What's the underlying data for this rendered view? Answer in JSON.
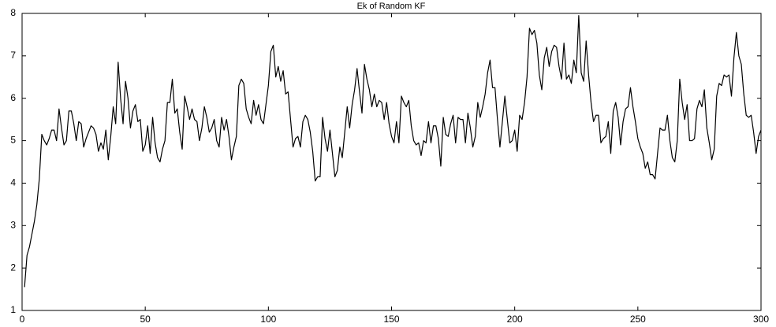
{
  "chart_data": {
    "type": "line",
    "title": "Ek of Random KF",
    "x": [
      1,
      2,
      3,
      4,
      5,
      6,
      7,
      8,
      9,
      10,
      11,
      12,
      13,
      14,
      15,
      16,
      17,
      18,
      19,
      20,
      21,
      22,
      23,
      24,
      25,
      26,
      27,
      28,
      29,
      30,
      31,
      32,
      33,
      34,
      35,
      36,
      37,
      38,
      39,
      40,
      41,
      42,
      43,
      44,
      45,
      46,
      47,
      48,
      49,
      50,
      51,
      52,
      53,
      54,
      55,
      56,
      57,
      58,
      59,
      60,
      61,
      62,
      63,
      64,
      65,
      66,
      67,
      68,
      69,
      70,
      71,
      72,
      73,
      74,
      75,
      76,
      77,
      78,
      79,
      80,
      81,
      82,
      83,
      84,
      85,
      86,
      87,
      88,
      89,
      90,
      91,
      92,
      93,
      94,
      95,
      96,
      97,
      98,
      99,
      100,
      101,
      102,
      103,
      104,
      105,
      106,
      107,
      108,
      109,
      110,
      111,
      112,
      113,
      114,
      115,
      116,
      117,
      118,
      119,
      120,
      121,
      122,
      123,
      124,
      125,
      126,
      127,
      128,
      129,
      130,
      131,
      132,
      133,
      134,
      135,
      136,
      137,
      138,
      139,
      140,
      141,
      142,
      143,
      144,
      145,
      146,
      147,
      148,
      149,
      150,
      151,
      152,
      153,
      154,
      155,
      156,
      157,
      158,
      159,
      160,
      161,
      162,
      163,
      164,
      165,
      166,
      167,
      168,
      169,
      170,
      171,
      172,
      173,
      174,
      175,
      176,
      177,
      178,
      179,
      180,
      181,
      182,
      183,
      184,
      185,
      186,
      187,
      188,
      189,
      190,
      191,
      192,
      193,
      194,
      195,
      196,
      197,
      198,
      199,
      200,
      201,
      202,
      203,
      204,
      205,
      206,
      207,
      208,
      209,
      210,
      211,
      212,
      213,
      214,
      215,
      216,
      217,
      218,
      219,
      220,
      221,
      222,
      223,
      224,
      225,
      226,
      227,
      228,
      229,
      230,
      231,
      232,
      233,
      234,
      235,
      236,
      237,
      238,
      239,
      240,
      241,
      242,
      243,
      244,
      245,
      246,
      247,
      248,
      249,
      250,
      251,
      252,
      253,
      254,
      255,
      256,
      257,
      258,
      259,
      260,
      261,
      262,
      263,
      264,
      265,
      266,
      267,
      268,
      269,
      270,
      271,
      272,
      273,
      274,
      275,
      276,
      277,
      278,
      279,
      280,
      281,
      282,
      283,
      284,
      285,
      286,
      287,
      288,
      289,
      290,
      291,
      292,
      293,
      294,
      295,
      296,
      297,
      298,
      299,
      300
    ],
    "series": [
      {
        "color": "#000000",
        "values": [
          1.55,
          2.3,
          2.5,
          2.8,
          3.1,
          3.5,
          4.1,
          5.15,
          5.0,
          4.9,
          5.05,
          5.25,
          5.25,
          5.0,
          5.75,
          5.3,
          4.9,
          5.0,
          5.7,
          5.7,
          5.4,
          5.0,
          5.45,
          5.4,
          4.85,
          5.05,
          5.2,
          5.35,
          5.3,
          5.15,
          4.75,
          4.95,
          4.8,
          5.25,
          4.55,
          5.1,
          5.8,
          5.4,
          6.85,
          6.0,
          5.4,
          6.4,
          6.0,
          5.3,
          5.7,
          5.85,
          5.45,
          5.5,
          4.75,
          4.9,
          5.35,
          4.7,
          5.55,
          4.95,
          4.6,
          4.5,
          4.8,
          5.0,
          5.9,
          5.9,
          6.45,
          5.65,
          5.75,
          5.2,
          4.8,
          6.05,
          5.8,
          5.5,
          5.75,
          5.5,
          5.45,
          5.0,
          5.3,
          5.8,
          5.55,
          5.2,
          5.3,
          5.5,
          5.0,
          4.85,
          5.55,
          5.25,
          5.5,
          5.1,
          4.55,
          4.85,
          5.1,
          6.3,
          6.45,
          6.35,
          5.75,
          5.55,
          5.4,
          5.95,
          5.6,
          5.85,
          5.5,
          5.4,
          5.85,
          6.3,
          7.1,
          7.25,
          6.5,
          6.75,
          6.4,
          6.65,
          6.1,
          6.15,
          5.5,
          4.85,
          5.05,
          5.1,
          4.85,
          5.45,
          5.6,
          5.5,
          5.2,
          4.75,
          4.05,
          4.15,
          4.15,
          5.55,
          5.05,
          4.75,
          5.25,
          4.7,
          4.15,
          4.3,
          4.85,
          4.6,
          5.2,
          5.8,
          5.3,
          5.85,
          6.2,
          6.7,
          6.15,
          5.65,
          6.8,
          6.45,
          6.2,
          5.8,
          6.1,
          5.8,
          5.95,
          5.9,
          5.5,
          5.9,
          5.4,
          5.1,
          4.95,
          5.45,
          4.95,
          6.05,
          5.9,
          5.8,
          5.95,
          5.35,
          5.0,
          4.9,
          4.95,
          4.65,
          5.0,
          4.95,
          5.45,
          4.95,
          5.35,
          5.35,
          5.05,
          4.4,
          5.55,
          5.15,
          5.1,
          5.4,
          5.6,
          4.95,
          5.55,
          5.5,
          5.5,
          4.95,
          5.65,
          5.3,
          4.85,
          5.1,
          5.9,
          5.55,
          5.8,
          6.1,
          6.6,
          6.9,
          6.25,
          6.25,
          5.5,
          4.85,
          5.45,
          6.05,
          5.5,
          4.95,
          5.0,
          5.25,
          4.75,
          5.6,
          5.5,
          5.9,
          6.5,
          7.65,
          7.5,
          7.6,
          7.3,
          6.55,
          6.2,
          6.95,
          7.2,
          6.75,
          7.1,
          7.25,
          7.2,
          6.75,
          6.45,
          7.3,
          6.45,
          6.55,
          6.35,
          6.9,
          6.6,
          7.95,
          6.6,
          6.4,
          7.35,
          6.55,
          5.9,
          5.45,
          5.6,
          5.6,
          4.95,
          5.05,
          5.1,
          5.45,
          4.7,
          5.7,
          5.9,
          5.55,
          4.9,
          5.45,
          5.75,
          5.8,
          6.25,
          5.8,
          5.45,
          5.05,
          4.85,
          4.7,
          4.35,
          4.5,
          4.2,
          4.2,
          4.1,
          4.7,
          5.3,
          5.25,
          5.25,
          5.6,
          5.0,
          4.6,
          4.5,
          5.0,
          6.45,
          5.9,
          5.5,
          5.85,
          5.0,
          5.0,
          5.05,
          5.75,
          5.95,
          5.8,
          6.2,
          5.3,
          4.95,
          4.55,
          4.8,
          6.05,
          6.35,
          6.3,
          6.55,
          6.5,
          6.55,
          6.05,
          6.95,
          7.55,
          7.0,
          6.8,
          6.1,
          5.6,
          5.55,
          5.6,
          5.2,
          4.7,
          5.1,
          5.25
        ]
      }
    ],
    "xlim": [
      0,
      300
    ],
    "xticks": [
      0,
      50,
      100,
      150,
      200,
      250,
      300
    ],
    "ylim": [
      1,
      8
    ],
    "yticks": [
      1,
      2,
      3,
      4,
      5,
      6,
      7,
      8
    ],
    "grid": false
  }
}
